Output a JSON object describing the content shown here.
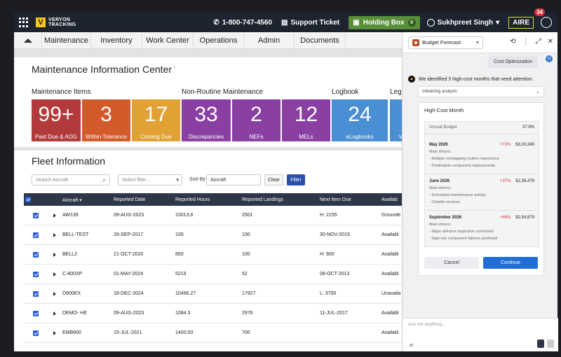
{
  "topbar": {
    "logo_line1": "VERYON",
    "logo_line2": "TRACKING",
    "phone": "1-800-747-4560",
    "support": "Support Ticket",
    "holding_box": "Holding Box",
    "holding_count": "0",
    "user": "Sukhpreet Singh",
    "aire": "AIRE",
    "notifications": "34"
  },
  "nav": [
    "Maintenance",
    "Inventory",
    "Work Center",
    "Operations",
    "Admin",
    "Documents"
  ],
  "mic": {
    "title": "Maintenance Information Center",
    "info": "i"
  },
  "sections": {
    "maint_items": "Maintenance Items",
    "non_routine": "Non-Routine Maintenance",
    "logbook": "Logbook",
    "legacy": "Leg"
  },
  "tiles": [
    {
      "value": "99+",
      "label": "Past Due & AOG",
      "color": "#b33a3a"
    },
    {
      "value": "3",
      "label": "Within Tolerance",
      "color": "#d35a2a"
    },
    {
      "value": "17",
      "label": "Coming Due",
      "color": "#e2a135"
    },
    {
      "value": "33",
      "label": "Discrepancies",
      "color": "#8a3fa3"
    },
    {
      "value": "2",
      "label": "NEFs",
      "color": "#8a3fa3"
    },
    {
      "value": "12",
      "label": "MELs",
      "color": "#8a3fa3"
    },
    {
      "value": "24",
      "label": "eLogbooks",
      "color": "#4a8fd3"
    },
    {
      "value": "",
      "label": "V",
      "color": "#4a8fd3"
    }
  ],
  "fleet": {
    "title": "Fleet Information",
    "search_placeholder": "Search Aircraft",
    "filter_placeholder": "Select filter...",
    "sort_by": "Sort By",
    "sort_value": "Aircraft",
    "clear": "Clear",
    "filter": "Filter",
    "columns": [
      "Aircraft",
      "Reported Date",
      "Reported Hours",
      "Reported Landings",
      "Next Item Due",
      "Availab"
    ],
    "rows": [
      [
        "AW139",
        "09-AUG-2023",
        "10013.8",
        "2501",
        "H: 2155",
        "Grounde"
      ],
      [
        "BELL-TEST",
        "28-SEP-2017",
        "100",
        "100",
        "30-NOV-2019",
        "Availabl"
      ],
      [
        "BELL2",
        "21-OCT-2020",
        "850",
        "100",
        "H: 900",
        "Availabl"
      ],
      [
        "C-800XP",
        "01-MAY-2024",
        "5219",
        "52",
        "08-OCT-2013",
        "Availabl"
      ],
      [
        "D900EX",
        "18-DEC-2024",
        "10496.27",
        "17927",
        "L: 3750",
        "Unavaila"
      ],
      [
        "DEMO- HE",
        "09-AUG-2023",
        "1084.3",
        "2976",
        "11-JUL-2017",
        "Availabl"
      ],
      [
        "EMB600",
        "15-JUL-2021",
        "1400:00",
        "700",
        "",
        "Availabl"
      ]
    ]
  },
  "panel": {
    "dropdown": "Budget Forecast",
    "cost_opt": "Cost Optimization",
    "user_initial": "U",
    "message": "We identified 3 high-cost months that need attention:",
    "analysis": "Initializing analysis",
    "card_title": "High-Cost Month",
    "annual_budget_label": "Annual Budget",
    "annual_budget_value": "37.9%",
    "main_drivers": "Main drivers:",
    "months": [
      {
        "name": "May 2026",
        "pct": "+72%",
        "amt": "$3,00,349",
        "drivers": [
          "- Multiple overlapping routine inspections",
          "- Predictable component replacements"
        ]
      },
      {
        "name": "June 2026",
        "pct": "+37%",
        "amt": "$2,38,479",
        "drivers": [
          "- Scheduled maintenance activity",
          "- Outside services"
        ]
      },
      {
        "name": "September 2026",
        "pct": "+46%",
        "amt": "$2,54,879",
        "drivers": [
          "- Major airframe inspection scheduled",
          "- High-risk component failures predicted"
        ]
      }
    ],
    "cancel": "Cancel",
    "continue": "Continue",
    "ask_placeholder": "Ask me anything..."
  }
}
